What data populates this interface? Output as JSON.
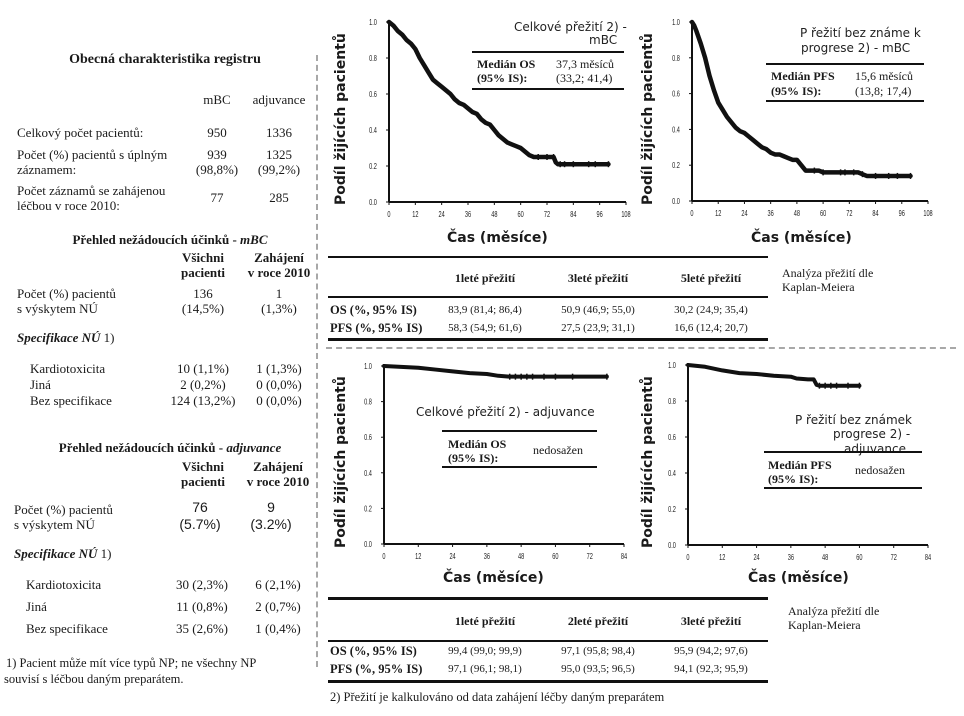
{
  "left": {
    "registry": {
      "title": "Obecná charakteristika registru",
      "col_headers": [
        "mBC",
        "adjuvance"
      ],
      "rows": [
        {
          "label": [
            "Celkový počet pacientů:"
          ],
          "mbc": [
            "950"
          ],
          "adj": [
            "1336"
          ]
        },
        {
          "label": [
            "Počet (%) pacientů s úplným",
            "záznamem:"
          ],
          "mbc": [
            "939",
            "(98,8%)"
          ],
          "adj": [
            "1325",
            "(99,2%)"
          ]
        },
        {
          "label": [
            "Počet záznamů se zahájenou",
            "léčbou v roce 2010:"
          ],
          "mbc": [
            "77"
          ],
          "adj": [
            "285"
          ]
        }
      ]
    },
    "ae_mbc": {
      "title_prefix": "Přehled nežádoucích účinků - ",
      "title_em": "mBC",
      "col_headers": [
        [
          "Všichni",
          "pacienti"
        ],
        [
          "Zahájení",
          "v roce 2010"
        ]
      ],
      "count_label": [
        "Počet (%) pacientů",
        "s výskytem NÚ"
      ],
      "count_all": [
        "136",
        "(14,5%)"
      ],
      "count_2010": [
        "1",
        "(1,3%)"
      ],
      "spec_label_em": "Specifikace NÚ",
      "spec_label_suffix": " 1)",
      "spec_rows": [
        {
          "label": "Kardiotoxicita",
          "all": "10 (1,1%)",
          "y2010": "1 (1,3%)"
        },
        {
          "label": "Jiná",
          "all": "2 (0,2%)",
          "y2010": "0 (0,0%)"
        },
        {
          "label": "Bez specifikace",
          "all": "124 (13,2%)",
          "y2010": "0 (0,0%)"
        }
      ]
    },
    "ae_adj": {
      "title_prefix": "Přehled nežádoucích účinků - ",
      "title_em": "adjuvance",
      "col_headers": [
        [
          "Všichni",
          "pacienti"
        ],
        [
          "Zahájení",
          "v roce 2010"
        ]
      ],
      "count_label": [
        "Počet (%) pacientů",
        "s výskytem NÚ"
      ],
      "count_all": [
        "76",
        "(5.7%)"
      ],
      "count_2010": [
        "9",
        "(3.2%)"
      ],
      "spec_label_em": "Specifikace NÚ",
      "spec_label_suffix": " 1)",
      "spec_rows": [
        {
          "label": "Kardiotoxicita",
          "all": "30 (2,3%)",
          "y2010": "6 (2,1%)"
        },
        {
          "label": "Jiná",
          "all": "11 (0,8%)",
          "y2010": "2 (0,7%)"
        },
        {
          "label": "Bez specifikace",
          "all": "35 (2,6%)",
          "y2010": "1 (0,4%)"
        }
      ]
    },
    "footnote1": [
      "1) Pacient může mít více typů NP; ne všechny NP",
      "souvisí s léčbou daným preparátem."
    ]
  },
  "survival_tables": [
    {
      "headers": [
        "",
        "1leté přežití",
        "3leté přežití",
        "5leté přežití"
      ],
      "rows": [
        {
          "label": "OS (%, 95% IS)",
          "values": [
            "83,9 (81,4; 86,4)",
            "50,9 (46,9; 55,0)",
            "30,2 (24,9; 35,4)"
          ]
        },
        {
          "label": "PFS (%, 95% IS)",
          "values": [
            "58,3 (54,9; 61,6)",
            "27,5 (23,9; 31,1)",
            "16,6 (12,4; 20,7)"
          ]
        }
      ],
      "side_note": [
        "Analýza přežití dle",
        "Kaplan-Meiera"
      ]
    },
    {
      "headers": [
        "",
        "1leté přežití",
        "2leté přežití",
        "3leté přežití"
      ],
      "rows": [
        {
          "label": "OS (%, 95% IS)",
          "values": [
            "99,4 (99,0; 99,9)",
            "97,1 (95,8; 98,4)",
            "95,9 (94,2; 97,6)"
          ]
        },
        {
          "label": "PFS (%, 95% IS)",
          "values": [
            "97,1 (96,1; 98,1)",
            "95,0 (93,5; 96,5)",
            "94,1 (92,3; 95,9)"
          ]
        }
      ],
      "side_note": [
        "Analýza přežití dle",
        "Kaplan-Meiera"
      ]
    }
  ],
  "footnote2": "2) Přežití je kalkulováno od data zahájení léčby daným preparátem",
  "chart_data": [
    {
      "type": "line",
      "title": "Celkové přežití 2) - mBC",
      "title_lines": [
        "Celkové  přežití  2) -",
        "mBC"
      ],
      "xlabel": "Čas (měsíce)",
      "ylabel": "Podíl žijících pacientů",
      "xlim": [
        0,
        108
      ],
      "ylim": [
        0,
        1
      ],
      "xticks": [
        "0",
        "12",
        "24",
        "36",
        "48",
        "60",
        "72",
        "84",
        "96",
        "108"
      ],
      "yticks": [
        "0.0",
        "0.2",
        "0.4",
        "0.6",
        "0.8",
        "1.0"
      ],
      "median_label": [
        "Medián OS",
        "(95% IS):"
      ],
      "median_value": [
        "37,3 měsíců",
        "(33,2; 41,4)"
      ],
      "series": [
        {
          "name": "OS mBC",
          "x": [
            0,
            2,
            4,
            6,
            8,
            10,
            12,
            14,
            16,
            18,
            20,
            22,
            24,
            26,
            28,
            30,
            32,
            34,
            36,
            38,
            40,
            42,
            44,
            46,
            48,
            50,
            52,
            54,
            56,
            58,
            60,
            62,
            64,
            66,
            68,
            70,
            72,
            74,
            75,
            76,
            77,
            78,
            80,
            84,
            88,
            92,
            96,
            100
          ],
          "y": [
            1.0,
            0.98,
            0.95,
            0.93,
            0.9,
            0.88,
            0.85,
            0.8,
            0.76,
            0.72,
            0.68,
            0.66,
            0.64,
            0.62,
            0.6,
            0.57,
            0.55,
            0.54,
            0.52,
            0.5,
            0.49,
            0.46,
            0.44,
            0.43,
            0.4,
            0.37,
            0.35,
            0.33,
            0.32,
            0.31,
            0.3,
            0.28,
            0.26,
            0.25,
            0.25,
            0.25,
            0.25,
            0.25,
            0.25,
            0.22,
            0.21,
            0.21,
            0.21,
            0.21,
            0.21,
            0.21,
            0.21,
            0.21
          ]
        }
      ],
      "censor_x": [
        68,
        72,
        75,
        78,
        80,
        84,
        91,
        94,
        100
      ]
    },
    {
      "type": "line",
      "title": "Přežití bez známek progrese 2) - mBC",
      "title_lines": [
        "P řežití bez  známe k",
        "progrese  2)  - mBC"
      ],
      "xlabel": "Čas (měsíce)",
      "ylabel": "Podíl žijících pacientů",
      "xlim": [
        0,
        108
      ],
      "ylim": [
        0,
        1
      ],
      "xticks": [
        "0",
        "12",
        "24",
        "36",
        "48",
        "60",
        "72",
        "84",
        "96",
        "108"
      ],
      "yticks": [
        "0.0",
        "0.2",
        "0.4",
        "0.6",
        "0.8",
        "1.0"
      ],
      "median_label": [
        "Medián PFS",
        "(95% IS):"
      ],
      "median_value": [
        "15,6 měsíců",
        "(13,8; 17,4)"
      ],
      "series": [
        {
          "name": "PFS mBC",
          "x": [
            0,
            1,
            2,
            4,
            6,
            8,
            10,
            12,
            14,
            16,
            18,
            20,
            22,
            24,
            26,
            28,
            30,
            32,
            34,
            36,
            38,
            40,
            42,
            44,
            46,
            48,
            50,
            52,
            54,
            56,
            58,
            60,
            64,
            68,
            72,
            76,
            78,
            80,
            84,
            90,
            96,
            100
          ],
          "y": [
            1.0,
            0.98,
            0.95,
            0.88,
            0.8,
            0.7,
            0.62,
            0.55,
            0.51,
            0.47,
            0.44,
            0.41,
            0.39,
            0.38,
            0.36,
            0.34,
            0.32,
            0.3,
            0.29,
            0.27,
            0.26,
            0.26,
            0.25,
            0.24,
            0.23,
            0.23,
            0.2,
            0.17,
            0.17,
            0.17,
            0.17,
            0.16,
            0.16,
            0.16,
            0.16,
            0.16,
            0.15,
            0.14,
            0.14,
            0.14,
            0.14,
            0.14
          ]
        }
      ],
      "censor_x": [
        56,
        60,
        68,
        70,
        74,
        78,
        84,
        90,
        94,
        100
      ]
    },
    {
      "type": "line",
      "title": "Celkové přežití 2) - adjuvance",
      "title_lines": [
        "Celkové  přežití 2)  - adjuvance"
      ],
      "xlabel": "Čas (měsíce)",
      "ylabel": "Podíl žijících pacientů",
      "xlim": [
        0,
        84
      ],
      "ylim": [
        0,
        1
      ],
      "xticks": [
        "0",
        "12",
        "24",
        "36",
        "48",
        "60",
        "72",
        "84"
      ],
      "yticks": [
        "0.0",
        "0.2",
        "0.4",
        "0.6",
        "0.8",
        "1.0"
      ],
      "median_label": [
        "Medián OS",
        "(95% IS):"
      ],
      "median_value": [
        "nedosažen"
      ],
      "series": [
        {
          "name": "OS adjuvance",
          "x": [
            0,
            6,
            12,
            18,
            24,
            30,
            36,
            40,
            44,
            48,
            52,
            56,
            60,
            66,
            72,
            78
          ],
          "y": [
            1.0,
            0.995,
            0.99,
            0.98,
            0.97,
            0.96,
            0.955,
            0.945,
            0.94,
            0.94,
            0.94,
            0.94,
            0.94,
            0.94,
            0.94,
            0.94
          ]
        }
      ],
      "censor_x": [
        44,
        46,
        48,
        50,
        52,
        56,
        60,
        66,
        78
      ]
    },
    {
      "type": "line",
      "title": "Přežití bez známek progrese 2) - adjuvance",
      "title_lines": [
        "P řežití bez  známek",
        "progrese  2)  -",
        "adjuvance"
      ],
      "xlabel": "Čas (měsíce)",
      "ylabel": "Podíl žijících pacientů",
      "xlim": [
        0,
        84
      ],
      "ylim": [
        0,
        1
      ],
      "xticks": [
        "0",
        "12",
        "24",
        "36",
        "48",
        "60",
        "72",
        "84"
      ],
      "yticks": [
        "0.0",
        "0.2",
        "0.4",
        "0.6",
        "0.8",
        "1.0"
      ],
      "median_label": [
        "Medián PFS",
        "(95% IS):"
      ],
      "median_value": [
        "nedosažen"
      ],
      "series": [
        {
          "name": "PFS adjuvance",
          "x": [
            0,
            6,
            12,
            18,
            24,
            30,
            36,
            38,
            42,
            44,
            45,
            46,
            48,
            52,
            56,
            60
          ],
          "y": [
            1.0,
            0.99,
            0.97,
            0.955,
            0.95,
            0.94,
            0.935,
            0.925,
            0.92,
            0.92,
            0.89,
            0.885,
            0.885,
            0.885,
            0.885,
            0.885
          ]
        }
      ],
      "censor_x": [
        46,
        48,
        50,
        52,
        56,
        60
      ]
    }
  ]
}
